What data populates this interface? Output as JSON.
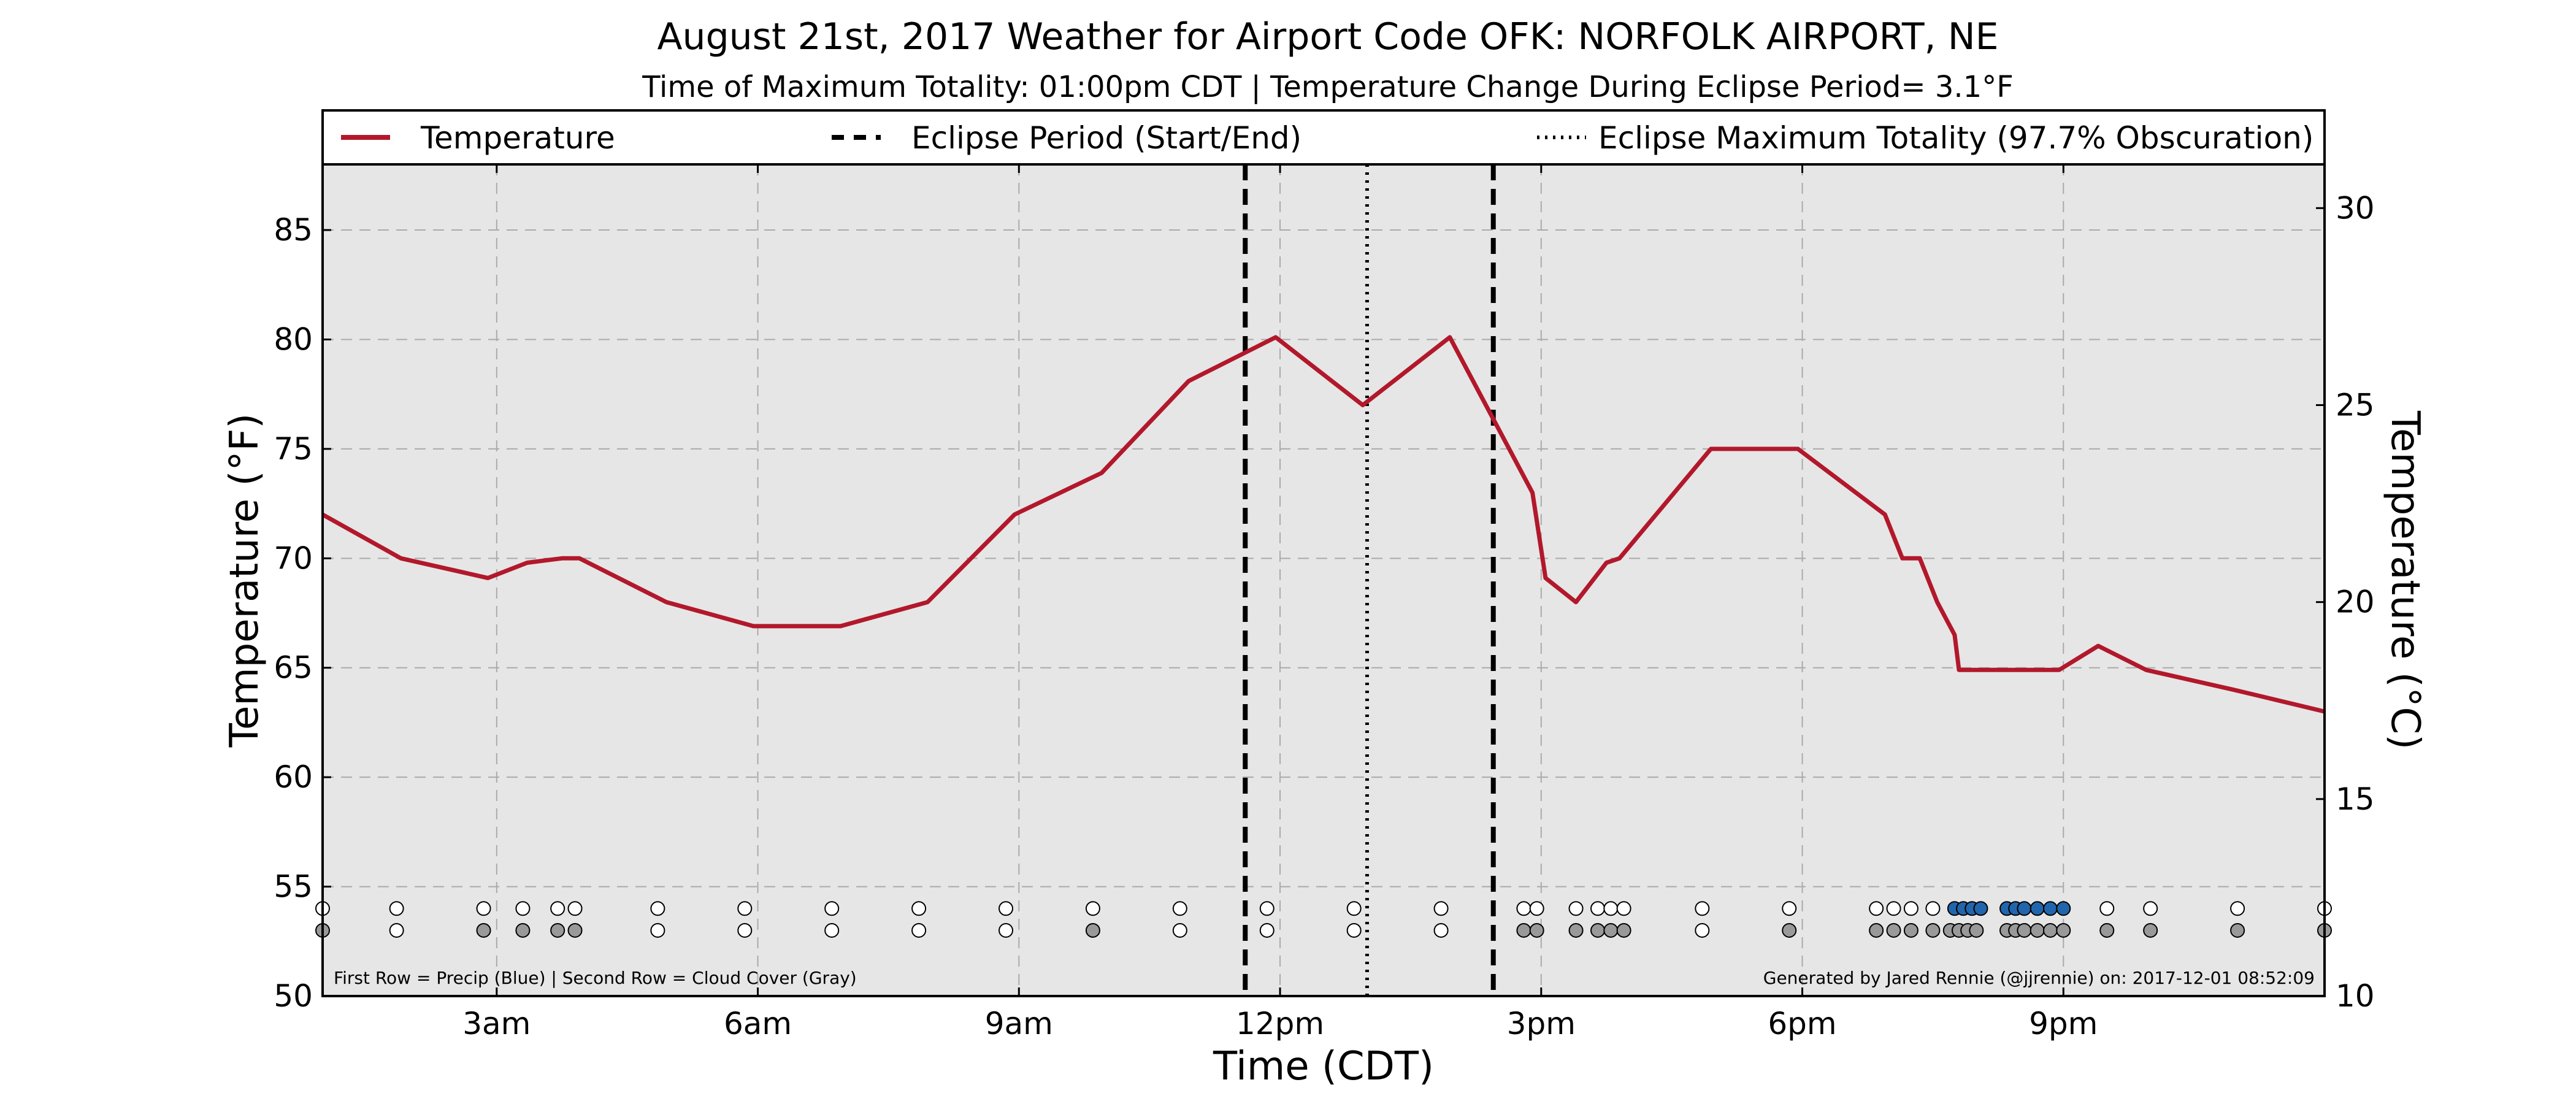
{
  "chart_data": {
    "type": "line",
    "title": "August 21st, 2017 Weather for Airport Code OFK: NORFOLK AIRPORT, NE",
    "subtitle": "Time of Maximum Totality: 01:00pm CDT | Temperature Change During Eclipse Period= 3.1°F",
    "xlabel": "Time (CDT)",
    "ylabel": "Temperature (°F)",
    "ylabel_right": "Temperature (°C)",
    "xlim": [
      1.0,
      24.0
    ],
    "ylim": [
      50,
      88
    ],
    "ylim_right_c": [
      10,
      31.11
    ],
    "x_ticks": [
      {
        "value": 3,
        "label": "3am"
      },
      {
        "value": 6,
        "label": "6am"
      },
      {
        "value": 9,
        "label": "9am"
      },
      {
        "value": 12,
        "label": "12pm"
      },
      {
        "value": 15,
        "label": "3pm"
      },
      {
        "value": 18,
        "label": "6pm"
      },
      {
        "value": 21,
        "label": "9pm"
      }
    ],
    "y_ticks": [
      "50",
      "55",
      "60",
      "65",
      "70",
      "75",
      "80",
      "85"
    ],
    "y_ticks_right": [
      "10",
      "15",
      "20",
      "25",
      "30"
    ],
    "grid": true,
    "legend": {
      "placement": "top",
      "entries": [
        "Temperature",
        "Eclipse Period (Start/End)",
        "Eclipse Maximum Totality (97.7% Obscuration)"
      ]
    },
    "series": [
      {
        "name": "Temperature",
        "color": "#b2182b",
        "x": [
          1.0,
          1.9,
          2.9,
          3.35,
          3.75,
          3.95,
          4.95,
          5.95,
          6.95,
          7.95,
          8.95,
          9.95,
          10.95,
          11.95,
          12.95,
          13.95,
          14.9,
          15.05,
          15.4,
          15.75,
          15.9,
          16.95,
          17.95,
          18.95,
          19.15,
          19.35,
          19.55,
          19.75,
          19.8,
          20.45,
          20.95,
          21.4,
          21.95,
          22.95,
          24.0
        ],
        "y": [
          72.0,
          70.0,
          69.1,
          69.8,
          70.0,
          70.0,
          68.0,
          66.9,
          66.9,
          68.0,
          72.0,
          73.9,
          78.1,
          80.1,
          77.0,
          80.1,
          73.0,
          69.1,
          68.0,
          69.8,
          70.0,
          75.0,
          75.0,
          72.0,
          70.0,
          70.0,
          68.0,
          66.5,
          64.9,
          64.9,
          64.9,
          66.0,
          64.9,
          64.0,
          63.0
        ]
      }
    ],
    "eclipse": {
      "start": 11.6,
      "max": 13.0,
      "end": 14.45
    },
    "observations": {
      "precip_blue": [
        19.75,
        19.85,
        19.95,
        20.05,
        20.35,
        20.45,
        20.55,
        20.7,
        20.85,
        21.0
      ],
      "precip_white": [
        1.0,
        1.85,
        2.85,
        3.3,
        3.7,
        3.9,
        4.85,
        5.85,
        6.85,
        7.85,
        8.85,
        9.85,
        10.85,
        11.85,
        12.85,
        13.85,
        14.8,
        14.95,
        15.4,
        15.65,
        15.8,
        15.95,
        16.85,
        17.85,
        18.85,
        19.05,
        19.25,
        19.5,
        21.5,
        22.0,
        23.0,
        24.0
      ],
      "cloud_gray": [
        1.0,
        2.85,
        3.3,
        3.7,
        3.9,
        9.85,
        14.8,
        14.95,
        15.4,
        15.65,
        15.8,
        15.95,
        17.85,
        18.85,
        19.05,
        19.25,
        19.5,
        19.7,
        19.8,
        19.9,
        20.0,
        20.35,
        20.45,
        20.55,
        20.7,
        20.85,
        21.0,
        21.5,
        22.0,
        23.0,
        24.0
      ],
      "cloud_white": [
        1.85,
        4.85,
        5.85,
        6.85,
        7.85,
        8.85,
        10.85,
        11.85,
        12.85,
        13.85,
        16.85
      ]
    },
    "footnote_left": "First Row = Precip (Blue) | Second Row = Cloud Cover (Gray)",
    "footnote_right": "Generated by Jared Rennie (@jjrennie) on: 2017-12-01 08:52:09",
    "colors": {
      "temperature": "#b2182b",
      "plot_background": "#e6e6e6",
      "precip": "#2166ac",
      "cloud": "#999999",
      "grid": "#aaaaaa"
    }
  }
}
